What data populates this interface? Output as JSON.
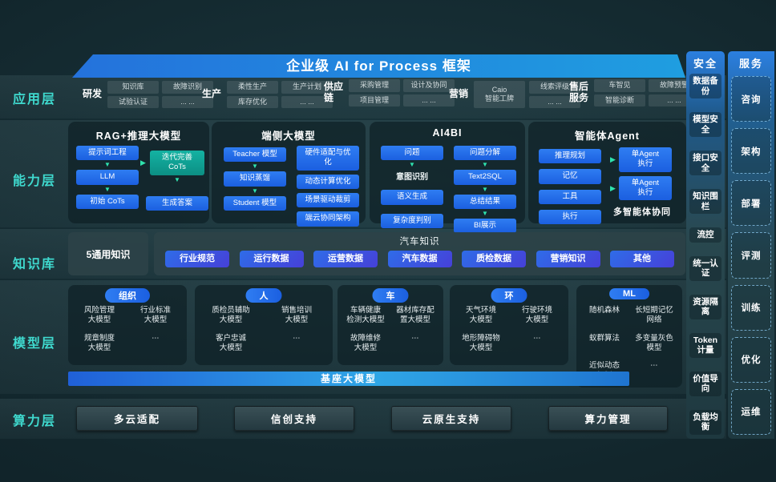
{
  "banner": {
    "title": "企业级 AI for Process 框架"
  },
  "application": {
    "label": "应用层",
    "groups": [
      {
        "name": "研发",
        "chips": [
          "知识库",
          "故障识别",
          "试验认证",
          "... ..."
        ]
      },
      {
        "name": "生产",
        "chips": [
          "柔性生产",
          "生产计划",
          "库存优化",
          "... ..."
        ]
      },
      {
        "name": "供应链",
        "chips": [
          "采购管理",
          "设计及协同",
          "项目管理",
          "... ..."
        ]
      },
      {
        "name": "营销",
        "tall_chip": "Caio\n智能工牌",
        "chips": [
          "线索评级",
          "... ..."
        ]
      },
      {
        "name": "售后服务",
        "chips": [
          "车智见",
          "故障预警",
          "智能诊断",
          "... ..."
        ]
      }
    ]
  },
  "capability": {
    "label": "能力层",
    "rag_box": {
      "title": "RAG+推理大模型",
      "flow_left": [
        "提示词工程",
        "LLM",
        "初始 CoTs"
      ],
      "refine_chip": "迭代完善\nCoTs",
      "answer_chip": "生成答案"
    },
    "edge_box": {
      "title": "端侧大模型",
      "flow": [
        "Teacher 模型",
        "知识蒸馏",
        "Student 模型"
      ],
      "features": [
        "硬件适配与优\n化",
        "动态计算优化",
        "场景驱动裁剪",
        "端云协同架构"
      ]
    },
    "ai4bi_box": {
      "title": "AI4BI",
      "question_chip": "问题",
      "intent_text": "意图识别",
      "left_chips": [
        "语义生成",
        "复杂度判别"
      ],
      "flow_right": [
        "问题分解",
        "Text2SQL",
        "总结结果",
        "BI展示"
      ]
    },
    "agent_box": {
      "title": "智能体Agent",
      "components": [
        "推理规划",
        "记忆",
        "工具",
        "执行"
      ],
      "exec_chips": [
        "单Agent\n执行",
        "单Agent\n执行"
      ],
      "note": "多智能体协同"
    }
  },
  "knowledge": {
    "label": "知识库",
    "general": "5通用知识",
    "auto_title": "汽车知识",
    "chips": [
      "行业规范",
      "运行数据",
      "运营数据",
      "汽车数据",
      "质检数据",
      "营销知识",
      "其他"
    ]
  },
  "model": {
    "label": "模型层",
    "groups": [
      {
        "name": "组织",
        "items": [
          "风险管理\n大模型",
          "行业标准\n大模型",
          "规章制度\n大模型",
          "⋯"
        ]
      },
      {
        "name": "人",
        "items": [
          "质检员辅助\n大模型",
          "销售培训\n大模型",
          "客户忠诚\n大模型",
          "⋯"
        ]
      },
      {
        "name": "车",
        "items": [
          "车辆健康\n检测大模型",
          "器材库存配\n置大模型",
          "故障维修\n大模型",
          "⋯"
        ]
      },
      {
        "name": "环",
        "items": [
          "天气环境\n大模型",
          "行驶环境\n大模型",
          "地形障碍物\n大模型",
          "⋯"
        ]
      },
      {
        "name": "ML",
        "items": [
          "随机森林",
          "长短期记忆\n网络",
          "蚁群算法",
          "多变量灰色\n模型",
          "近似动态\n规划",
          "⋯"
        ]
      }
    ],
    "base_banner": "基座大模型"
  },
  "compute": {
    "label": "算力层",
    "items": [
      "多云适配",
      "信创支持",
      "云原生支持",
      "算力管理"
    ]
  },
  "security": {
    "title": "安全",
    "items": [
      "数据备份",
      "模型安全",
      "接口安全",
      "知识围栏",
      "流控",
      "统一认证",
      "资源隔离",
      "Token计量",
      "价值导向",
      "负载均衡"
    ]
  },
  "service": {
    "title": "服务",
    "items": [
      "咨询",
      "架构",
      "部署",
      "评测",
      "训练",
      "优化",
      "运维"
    ]
  },
  "colors": {
    "accent_teal": "#3fd9ce",
    "chip_blue": "#1b5fe0",
    "chip_teal": "#0c8f84",
    "banner_blue": "#1f9ee0"
  }
}
